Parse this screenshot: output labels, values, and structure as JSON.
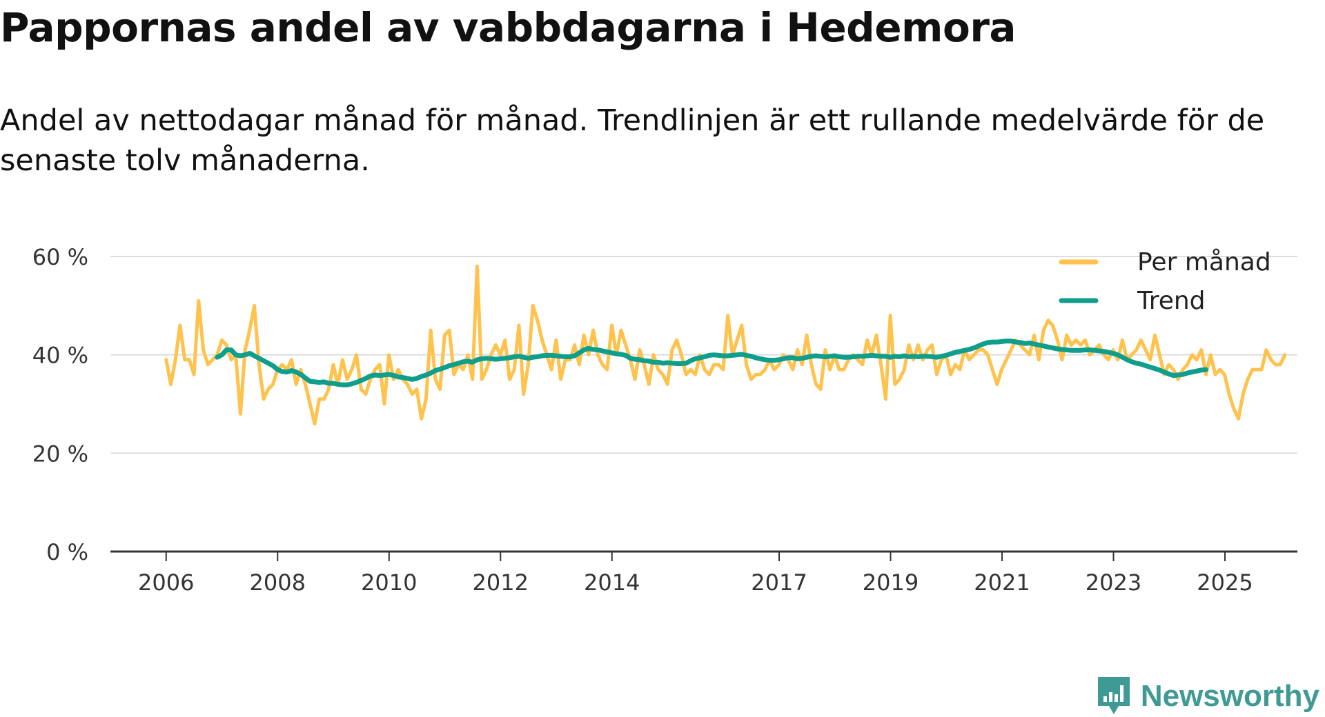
{
  "header": {
    "title": "Pappornas andel av vabbdagarna i Hedemora",
    "subtitle": "Andel av nettodagar månad för månad. Trendlinjen är ett rullande medelvärde för de senaste tolv månaderna."
  },
  "brand": {
    "name": "Newsworthy",
    "color": "#3f9a96",
    "icon": "bar-chart-badge-icon"
  },
  "colors": {
    "monthly": "#ffc24d",
    "trend": "#0f9e8c",
    "grid": "#dddddd",
    "axis": "#333333"
  },
  "chart_data": {
    "type": "line",
    "title": "Pappornas andel av vabbdagarna i Hedemora",
    "xlabel": "",
    "ylabel": "",
    "ylim": [
      0,
      60
    ],
    "yticks": [
      0,
      20,
      40,
      60
    ],
    "ytick_labels": [
      "0 %",
      "20 %",
      "40 %",
      "60 %"
    ],
    "xlim": [
      2005.0,
      2026.3
    ],
    "xticks": [
      2006,
      2008,
      2010,
      2012,
      2014,
      2017,
      2019,
      2021,
      2023,
      2025
    ],
    "xtick_labels": [
      "2006",
      "2008",
      "2010",
      "2012",
      "2014",
      "2017",
      "2019",
      "2021",
      "2023",
      "2025"
    ],
    "grid": true,
    "legend": {
      "position": "top-right",
      "entries": [
        "Per månad",
        "Trend"
      ]
    },
    "series": [
      {
        "name": "Per månad",
        "color": "#ffc24d",
        "x_start": 2006.0,
        "step": 0.0833,
        "values": [
          39,
          34,
          39,
          46,
          39,
          39,
          36,
          51,
          41,
          38,
          39,
          40,
          43,
          42,
          39,
          40,
          28,
          41,
          45,
          50,
          38,
          31,
          33,
          34,
          37,
          38,
          37,
          39,
          34,
          37,
          34,
          30,
          26,
          31,
          31,
          33,
          38,
          34,
          39,
          35,
          37,
          40,
          33,
          32,
          35,
          37,
          38,
          30,
          40,
          35,
          37,
          35,
          34,
          32,
          33,
          27,
          31,
          45,
          35,
          33,
          44,
          45,
          36,
          38,
          37,
          40,
          35,
          58,
          35,
          37,
          40,
          42,
          40,
          43,
          35,
          37,
          46,
          32,
          38,
          50,
          47,
          43,
          40,
          37,
          43,
          35,
          39,
          39,
          42,
          38,
          44,
          40,
          45,
          40,
          38,
          37,
          46,
          40,
          45,
          42,
          39,
          35,
          41,
          38,
          34,
          40,
          37,
          36,
          34,
          41,
          43,
          40,
          36,
          37,
          36,
          40,
          37,
          36,
          38,
          38,
          37,
          48,
          40,
          43,
          46,
          38,
          35,
          36,
          36,
          37,
          39,
          37,
          38,
          40,
          39,
          37,
          41,
          38,
          44,
          38,
          34,
          33,
          41,
          37,
          40,
          37,
          37,
          39,
          40,
          39,
          38,
          43,
          40,
          44,
          38,
          31,
          48,
          34,
          35,
          37,
          42,
          39,
          42,
          39,
          41,
          42,
          36,
          39,
          40,
          36,
          38,
          37,
          41,
          39,
          40,
          41,
          41,
          40,
          37,
          34,
          37,
          39,
          41,
          43,
          42,
          41,
          40,
          44,
          39,
          45,
          47,
          46,
          43,
          39,
          44,
          42,
          43,
          42,
          43,
          40,
          41,
          42,
          40,
          39,
          41,
          39,
          43,
          39,
          40,
          41,
          43,
          41,
          39,
          44,
          40,
          36,
          38,
          37,
          35,
          37,
          38,
          40,
          39,
          41,
          36,
          40,
          36,
          37,
          36,
          32,
          29,
          27,
          32,
          35,
          37,
          37,
          37,
          41,
          39,
          38,
          38,
          40
        ]
      },
      {
        "name": "Trend",
        "color": "#0f9e8c",
        "x_start": 2006.9167,
        "step": 0.0833,
        "values": [
          39.5,
          40,
          41,
          41,
          40,
          39.8,
          40,
          40.3,
          39.8,
          39.3,
          38.8,
          38.3,
          37.8,
          37,
          36.6,
          36.5,
          36.8,
          36.5,
          36,
          35.3,
          34.6,
          34.5,
          34.4,
          34.5,
          34.2,
          34.2,
          34,
          33.9,
          33.9,
          34.1,
          34.4,
          34.8,
          35.2,
          35.7,
          35.9,
          35.8,
          35.9,
          36,
          35.8,
          35.5,
          35.4,
          35.2,
          35,
          35.2,
          35.6,
          35.9,
          36.3,
          36.8,
          37.1,
          37.4,
          37.8,
          38,
          38.3,
          38.6,
          38.7,
          38.5,
          39,
          39.2,
          39.3,
          39.2,
          39.1,
          39.2,
          39.3,
          39.4,
          39.6,
          39.7,
          39.5,
          39.3,
          39.5,
          39.6,
          39.8,
          39.9,
          39.9,
          39.8,
          39.7,
          39.6,
          39.6,
          39.8,
          40.4,
          41,
          41.3,
          41.1,
          41,
          40.8,
          40.6,
          40.4,
          40.2,
          40.1,
          39.9,
          39.3,
          39.1,
          39,
          38.8,
          38.7,
          38.5,
          38.5,
          38.3,
          38.4,
          38.3,
          38.2,
          38.2,
          38.3,
          38.8,
          39.2,
          39.4,
          39.6,
          39.9,
          40,
          39.9,
          39.8,
          39.8,
          39.9,
          40,
          40.1,
          39.9,
          39.7,
          39.4,
          39.2,
          39,
          38.9,
          38.9,
          39,
          39.2,
          39.4,
          39.4,
          39.2,
          39.3,
          39.5,
          39.7,
          39.8,
          39.7,
          39.6,
          39.7,
          39.8,
          39.6,
          39.5,
          39.5,
          39.6,
          39.7,
          39.7,
          39.8,
          39.9,
          39.8,
          39.7,
          39.7,
          39.5,
          39.7,
          39.6,
          39.8,
          39.6,
          39.7,
          39.6,
          39.7,
          39.7,
          39.6,
          39.5,
          39.7,
          39.9,
          40.2,
          40.5,
          40.7,
          40.9,
          41.1,
          41.4,
          41.8,
          42.2,
          42.5,
          42.6,
          42.6,
          42.7,
          42.8,
          42.8,
          42.6,
          42.5,
          42.3,
          42.4,
          42.2,
          42,
          41.8,
          41.6,
          41.4,
          41.2,
          41.1,
          41,
          40.9,
          40.9,
          40.9,
          41,
          41,
          40.9,
          40.8,
          40.7,
          40.5,
          40.3,
          40,
          39.5,
          39,
          38.6,
          38.3,
          38.1,
          37.8,
          37.5,
          37.2,
          36.9,
          36.5,
          36.1,
          35.8,
          35.9,
          36,
          36.3,
          36.5,
          36.7,
          36.9,
          37
        ]
      }
    ]
  }
}
